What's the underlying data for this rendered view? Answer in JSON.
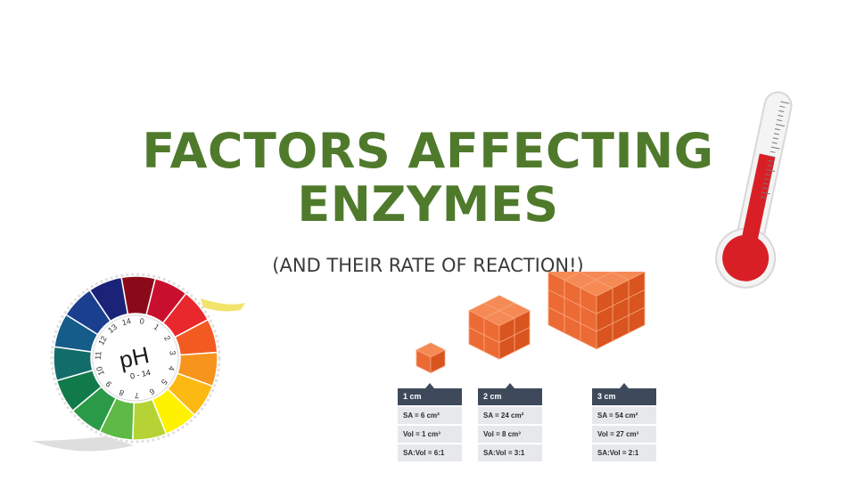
{
  "slide": {
    "title_line1": "FACTORS AFFECTING",
    "title_line2": "ENZYMES",
    "subtitle": "(AND THEIR RATE OF REACTION!)"
  },
  "ph_wheel": {
    "label": "pH",
    "range": "0 - 14",
    "numbers": [
      "0",
      "1",
      "2",
      "3",
      "4",
      "5",
      "6",
      "7",
      "8",
      "9",
      "10",
      "11",
      "12",
      "13",
      "14"
    ]
  },
  "cubes": [
    {
      "side": "1 cm",
      "sa": "SA = 6 cm²",
      "vol": "Vol = 1 cm³",
      "ratio": "SA:Vol = 6:1"
    },
    {
      "side": "2 cm",
      "sa": "SA = 24 cm²",
      "vol": "Vol = 8 cm³",
      "ratio": "SA:Vol = 3:1"
    },
    {
      "side": "3 cm",
      "sa": "SA = 54 cm²",
      "vol": "Vol = 27 cm³",
      "ratio": "SA:Vol = 2:1"
    }
  ],
  "colors": {
    "title": "#4f7a2b",
    "card_header": "#3e4a5c",
    "cube": "#ec6a34",
    "thermo_red": "#d91f26"
  },
  "icons": [
    "ph-wheel-icon",
    "thermometer-icon",
    "cube-icon"
  ]
}
